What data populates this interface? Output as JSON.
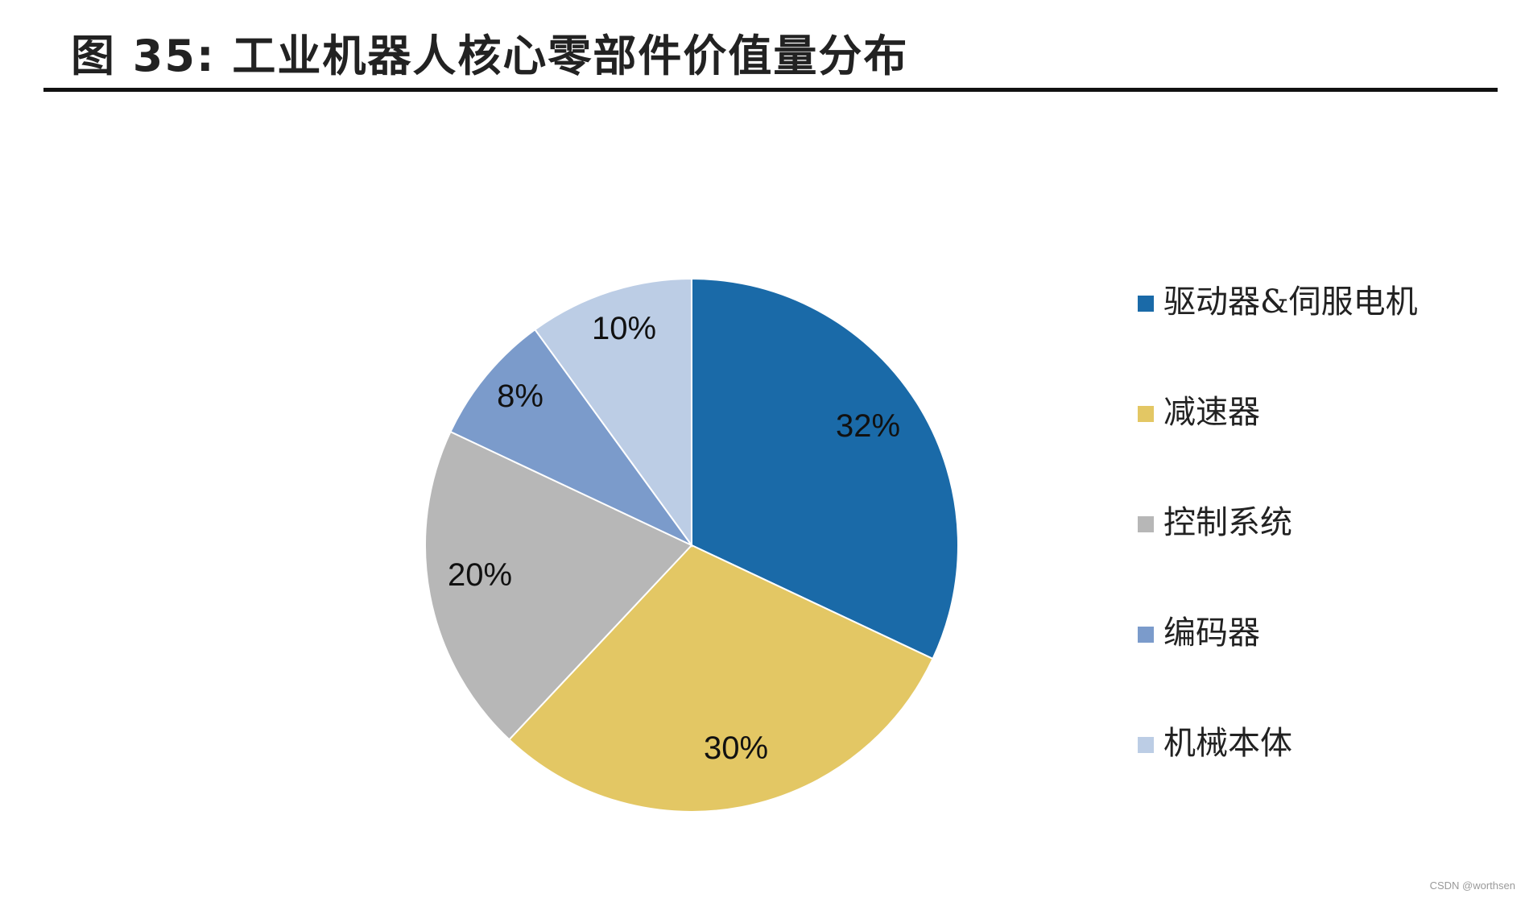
{
  "header": {
    "title": "图 35: 工业机器人核心零部件价值量分布"
  },
  "chart_data": {
    "type": "pie",
    "title": "图 35: 工业机器人核心零部件价值量分布",
    "start_angle_deg": 0,
    "direction": "clockwise",
    "slices": [
      {
        "label": "驱动器&伺服电机",
        "value": 32,
        "value_label": "32%",
        "color": "#1A6AA8"
      },
      {
        "label": "减速器",
        "value": 30,
        "value_label": "30%",
        "color": "#E3C764"
      },
      {
        "label": "控制系统",
        "value": 20,
        "value_label": "20%",
        "color": "#B7B7B7"
      },
      {
        "label": "编码器",
        "value": 8,
        "value_label": "8%",
        "color": "#7B9BCB"
      },
      {
        "label": "机械本体",
        "value": 10,
        "value_label": "10%",
        "color": "#BCCDE5"
      }
    ],
    "legend_position": "right"
  },
  "watermark": "CSDN @worthsen"
}
